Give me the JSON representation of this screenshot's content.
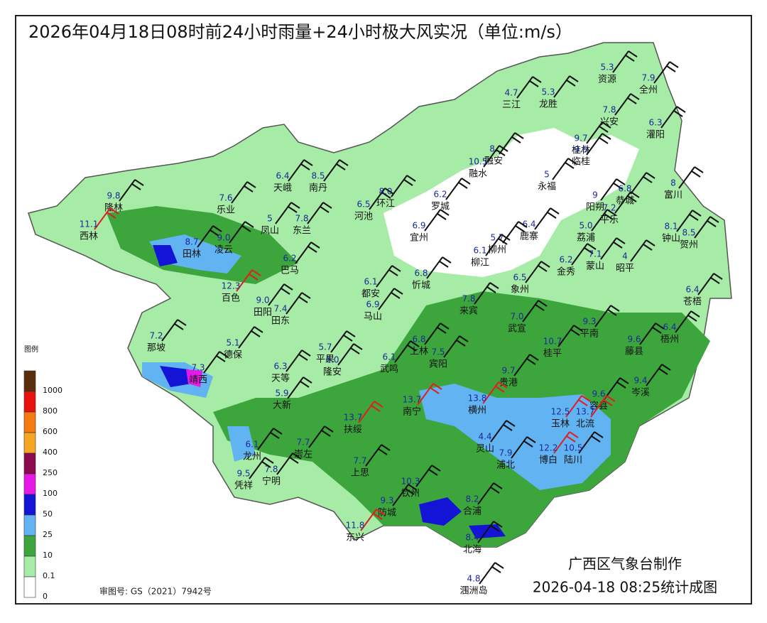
{
  "title": "2026年04月18日08时前24小时雨量+24小时极大风实况（单位:m/s）",
  "legend": {
    "title": "图例",
    "levels": [
      {
        "label": "1000",
        "color": "#5a2d0c"
      },
      {
        "label": "800",
        "color": "#e8120f"
      },
      {
        "label": "600",
        "color": "#f57a12"
      },
      {
        "label": "400",
        "color": "#f5a623"
      },
      {
        "label": "250",
        "color": "#8b0a50"
      },
      {
        "label": "100",
        "color": "#e619e6"
      },
      {
        "label": "50",
        "color": "#1414d6"
      },
      {
        "label": "25",
        "color": "#61b3f2"
      },
      {
        "label": "10",
        "color": "#3ca53c"
      },
      {
        "label": "0.1",
        "color": "#a6eba6"
      },
      {
        "label": "0",
        "color": "#ffffff"
      }
    ]
  },
  "stations": [
    {
      "name": "资源",
      "value": "5.3"
    },
    {
      "name": "全州",
      "value": "7.9"
    },
    {
      "name": "三江",
      "value": "4.7"
    },
    {
      "name": "龙胜",
      "value": "5.3"
    },
    {
      "name": "兴安",
      "value": "7.8"
    },
    {
      "name": "灌阳",
      "value": "6.3"
    },
    {
      "name": "融安",
      "value": "8."
    },
    {
      "name": "融水",
      "value": "10.5"
    },
    {
      "name": "桂林",
      "value": "9.7"
    },
    {
      "name": "临桂",
      "value": "9.5"
    },
    {
      "name": "永福",
      "value": "5"
    },
    {
      "name": "阳朔",
      "value": "9"
    },
    {
      "name": "恭城",
      "value": "6.8"
    },
    {
      "name": "富川",
      "value": "8"
    },
    {
      "name": "天峨",
      "value": "6.4"
    },
    {
      "name": "南丹",
      "value": "8.5"
    },
    {
      "name": "隆林",
      "value": "9.8"
    },
    {
      "name": "西林",
      "value": "11.1"
    },
    {
      "name": "乐业",
      "value": "7.6"
    },
    {
      "name": "凤山",
      "value": "5"
    },
    {
      "name": "东兰",
      "value": "7.8"
    },
    {
      "name": "河池",
      "value": "6.5"
    },
    {
      "name": "环江",
      "value": "8.0"
    },
    {
      "name": "罗城",
      "value": "6.2"
    },
    {
      "name": "田林",
      "value": "8.7"
    },
    {
      "name": "凌云",
      "value": "9.0"
    },
    {
      "name": "巴马",
      "value": "6.2"
    },
    {
      "name": "宜州",
      "value": "6.9"
    },
    {
      "name": "鹿寨",
      "value": "6.4"
    },
    {
      "name": "柳州",
      "value": "5.7"
    },
    {
      "name": "柳江",
      "value": "6.1"
    },
    {
      "name": "忻城",
      "value": "6.8"
    },
    {
      "name": "象州",
      "value": "6.5"
    },
    {
      "name": "金秀",
      "value": "6.2"
    },
    {
      "name": "荔浦",
      "value": "5.0"
    },
    {
      "name": "平乐",
      "value": "7.2"
    },
    {
      "name": "钟山",
      "value": "8.1"
    },
    {
      "name": "贺州",
      "value": "8.5"
    },
    {
      "name": "蒙山",
      "value": "7.1"
    },
    {
      "name": "昭平",
      "value": "4"
    },
    {
      "name": "百色",
      "value": "12.3"
    },
    {
      "name": "都安",
      "value": "6.1"
    },
    {
      "name": "马山",
      "value": "6.9"
    },
    {
      "name": "田阳",
      "value": "9.0"
    },
    {
      "name": "田东",
      "value": "7.4"
    },
    {
      "name": "来宾",
      "value": "7.8"
    },
    {
      "name": "苍梧",
      "value": "6.4"
    },
    {
      "name": "武宣",
      "value": "7.0"
    },
    {
      "name": "平南",
      "value": "9.3"
    },
    {
      "name": "那坡",
      "value": "7.2"
    },
    {
      "name": "德保",
      "value": "5.1"
    },
    {
      "name": "平果",
      "value": "5.7"
    },
    {
      "name": "隆安",
      "value": "6.0"
    },
    {
      "name": "上林",
      "value": "6.8"
    },
    {
      "name": "宾阳",
      "value": "7.5"
    },
    {
      "name": "桂平",
      "value": "10.7"
    },
    {
      "name": "藤县",
      "value": "9.6"
    },
    {
      "name": "梧州",
      "value": "6.4"
    },
    {
      "name": "靖西",
      "value": "7.3"
    },
    {
      "name": "武鸣",
      "value": "6.1"
    },
    {
      "name": "天等",
      "value": "6.3"
    },
    {
      "name": "大新",
      "value": "5.9"
    },
    {
      "name": "贵港",
      "value": "9.7"
    },
    {
      "name": "岑溪",
      "value": "9.4"
    },
    {
      "name": "南宁",
      "value": "13.7"
    },
    {
      "name": "横州",
      "value": "13.8"
    },
    {
      "name": "扶绥",
      "value": "13.7"
    },
    {
      "name": "容县",
      "value": "9.6"
    },
    {
      "name": "玉林",
      "value": "12.5"
    },
    {
      "name": "北流",
      "value": "13.7"
    },
    {
      "name": "龙州",
      "value": "6.1"
    },
    {
      "name": "崇左",
      "value": "7.7"
    },
    {
      "name": "灵山",
      "value": "4.4"
    },
    {
      "name": "浦北",
      "value": "7.9"
    },
    {
      "name": "博白",
      "value": "12.2"
    },
    {
      "name": "陆川",
      "value": "10.5"
    },
    {
      "name": "上思",
      "value": "7.7"
    },
    {
      "name": "宁明",
      "value": "7.8"
    },
    {
      "name": "凭祥",
      "value": "9.5"
    },
    {
      "name": "钦州",
      "value": "10.3"
    },
    {
      "name": "合浦",
      "value": "8.2"
    },
    {
      "name": "防城",
      "value": "9.3"
    },
    {
      "name": "东兴",
      "value": "11.8"
    },
    {
      "name": "北海",
      "value": "8.4"
    },
    {
      "name": "涠洲岛",
      "value": "4.8"
    }
  ],
  "footer": {
    "approval": "审图号: GS（2021）7942号",
    "maker": "广西区气象台制作",
    "time": "2026-04-18 08:25统计成图"
  }
}
